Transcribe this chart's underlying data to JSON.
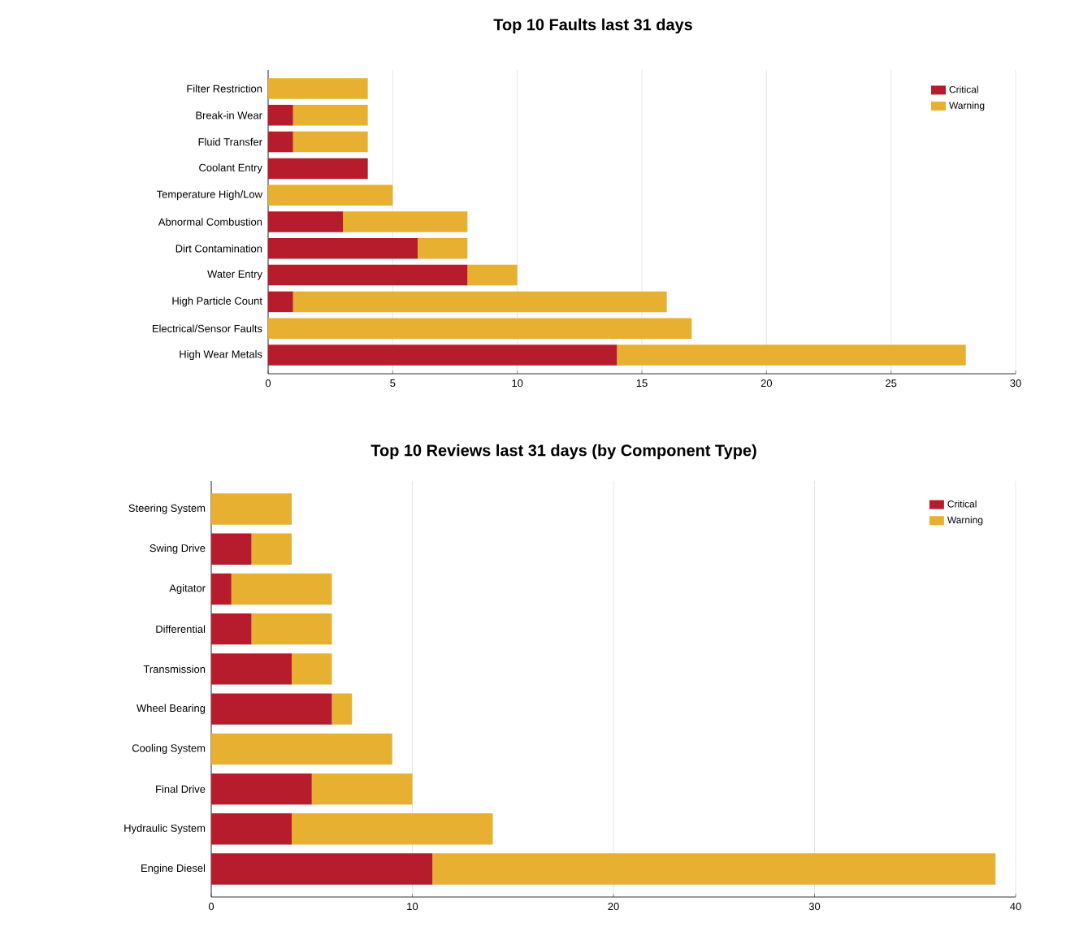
{
  "chart_data": [
    {
      "type": "bar",
      "orientation": "horizontal",
      "stacked": true,
      "title": "Top 10 Faults last 31 days",
      "categories": [
        "Filter Restriction",
        "Break-in Wear",
        "Fluid Transfer",
        "Coolant Entry",
        "Temperature High/Low",
        "Abnormal Combustion",
        "Dirt Contamination",
        "Water Entry",
        "High Particle Count",
        "Electrical/Sensor Faults",
        "High Wear Metals"
      ],
      "series": [
        {
          "name": "Critical",
          "color": "#b71c2c",
          "values": [
            0,
            1,
            1,
            4,
            0,
            3,
            6,
            8,
            1,
            0,
            14
          ]
        },
        {
          "name": "Warning",
          "color": "#e8b030",
          "values": [
            4,
            3,
            3,
            0,
            5,
            5,
            2,
            2,
            15,
            17,
            14
          ]
        }
      ],
      "xlim": [
        0,
        30
      ],
      "xticks": [
        0,
        5,
        10,
        15,
        20,
        25,
        30
      ],
      "grid": "x",
      "legend": "top right"
    },
    {
      "type": "bar",
      "orientation": "horizontal",
      "stacked": true,
      "title": "Top 10 Reviews last 31 days (by Component Type)",
      "categories": [
        "Steering System",
        "Swing Drive",
        "Agitator",
        "Differential",
        "Transmission",
        "Wheel Bearing",
        "Cooling System",
        "Final Drive",
        "Hydraulic System",
        "Engine Diesel"
      ],
      "series": [
        {
          "name": "Critical",
          "color": "#b71c2c",
          "values": [
            0,
            2,
            1,
            2,
            4,
            6,
            0,
            5,
            4,
            11
          ]
        },
        {
          "name": "Warning",
          "color": "#e8b030",
          "values": [
            4,
            2,
            5,
            4,
            2,
            1,
            9,
            5,
            10,
            28
          ]
        }
      ],
      "xlim": [
        0,
        40
      ],
      "xticks": [
        0,
        10,
        20,
        30,
        40
      ],
      "grid": "x",
      "legend": "top right"
    }
  ]
}
